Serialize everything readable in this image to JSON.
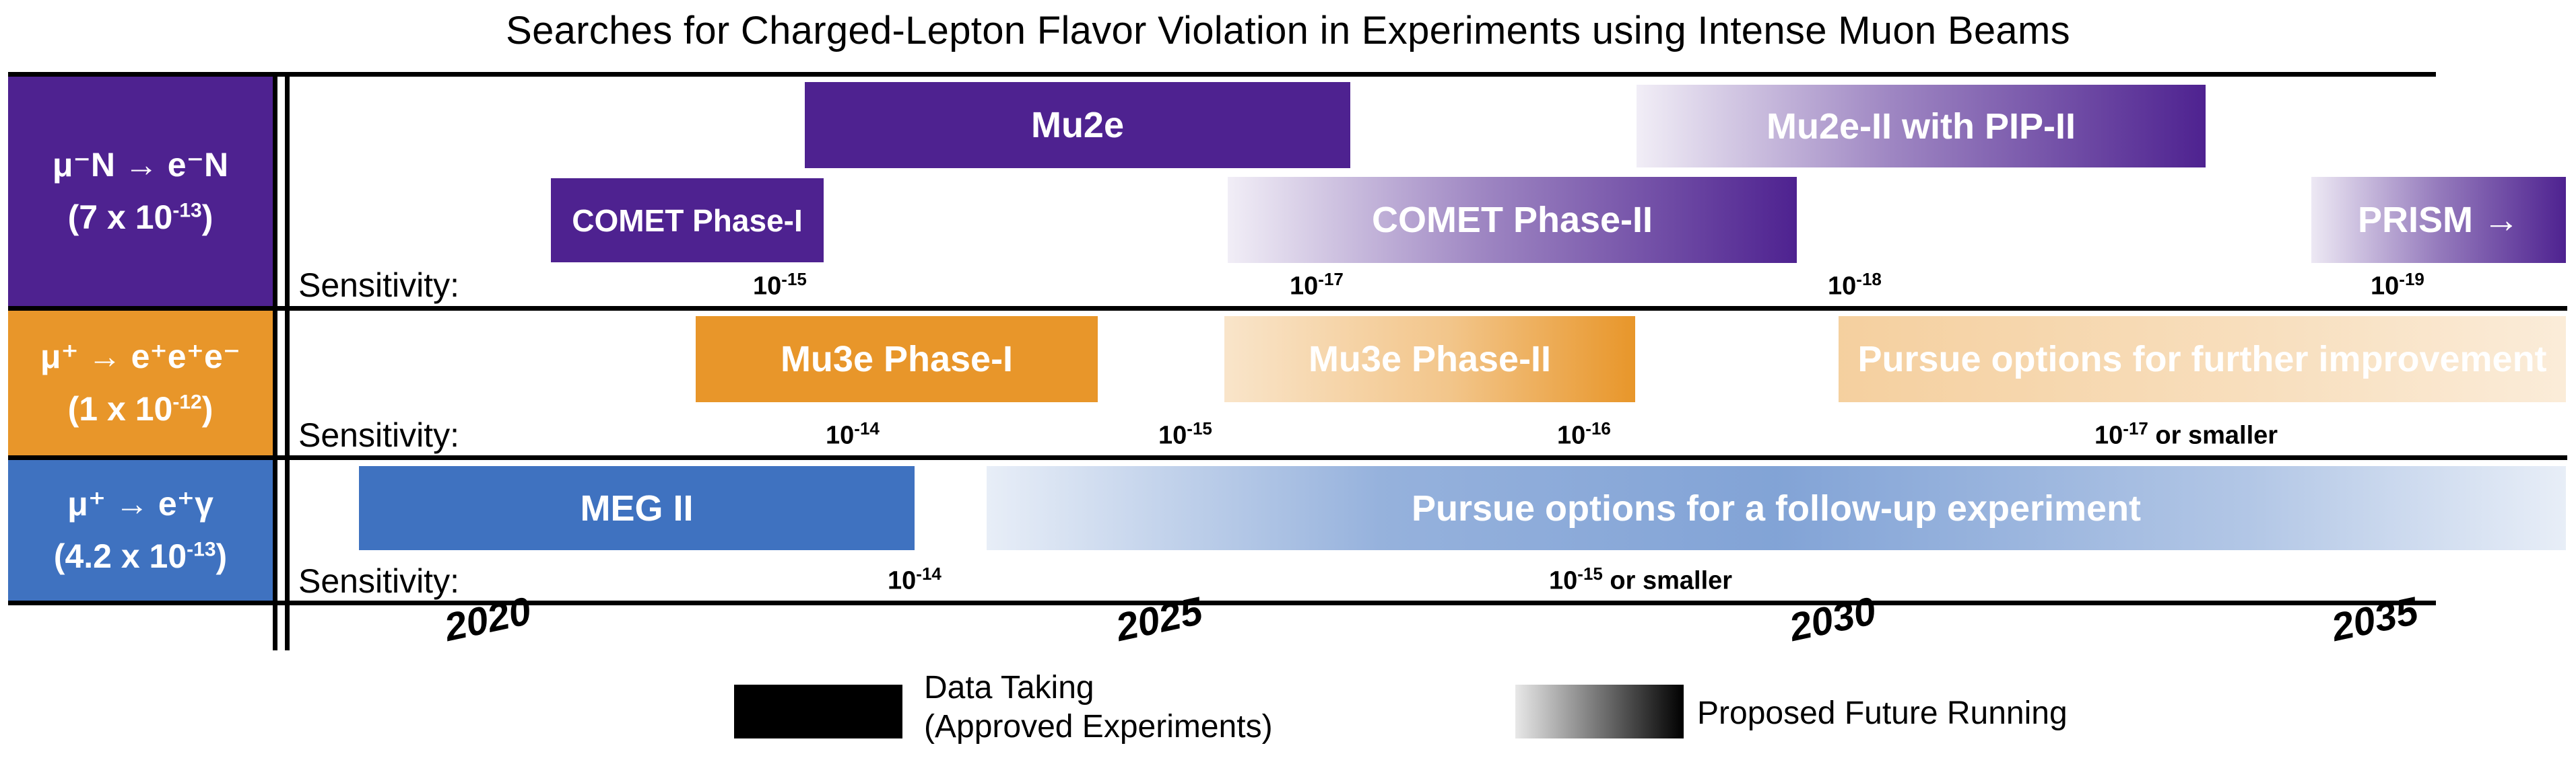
{
  "title": "Searches for Charged-Lepton Flavor Violation in Experiments using Intense Muon Beams",
  "colors": {
    "purple": "#4E2290",
    "orange": "#E8962A",
    "blue": "#3F72C0"
  },
  "rows": [
    {
      "process": "μ⁻N → e⁻N",
      "limit_prefix": "(7 x 10",
      "limit_exp": "-13",
      "limit_suffix": ")",
      "sensitivity_label": "Sensitivity:",
      "bars": [
        {
          "label": "Mu2e",
          "start": 2022.0,
          "end": 2026.1,
          "style": "data-taking"
        },
        {
          "label": "Mu2e-II with PIP-II",
          "start": 2028.2,
          "end": 2032.5,
          "style": "proposed"
        },
        {
          "label": "COMET Phase-I",
          "start": 2020.1,
          "end": 2021.8,
          "style": "data-taking"
        },
        {
          "label": "COMET Phase-II",
          "start": 2025.1,
          "end": 2029.4,
          "style": "proposed"
        },
        {
          "label": "PRISM →",
          "start": 2034.0,
          "end": 2035.9,
          "style": "proposed"
        }
      ],
      "sensitivities": [
        {
          "base": "10",
          "exp": "-15",
          "suffix": ""
        },
        {
          "base": "10",
          "exp": "-17",
          "suffix": ""
        },
        {
          "base": "10",
          "exp": "-18",
          "suffix": ""
        },
        {
          "base": "10",
          "exp": "-19",
          "suffix": ""
        }
      ]
    },
    {
      "process": "μ⁺ → e⁺e⁺e⁻",
      "limit_prefix": "(1 x 10",
      "limit_exp": "-12",
      "limit_suffix": ")",
      "sensitivity_label": "Sensitivity:",
      "bars": [
        {
          "label": "Mu3e Phase-I",
          "start": 2021.3,
          "end": 2024.3,
          "style": "data-taking"
        },
        {
          "label": "Mu3e Phase-II",
          "start": 2025.1,
          "end": 2028.2,
          "style": "proposed"
        },
        {
          "label": "Pursue options for further improvement",
          "start": 2029.6,
          "end": 2035.9,
          "style": "proposed-light"
        }
      ],
      "sensitivities": [
        {
          "base": "10",
          "exp": "-14",
          "suffix": ""
        },
        {
          "base": "10",
          "exp": "-15",
          "suffix": ""
        },
        {
          "base": "10",
          "exp": "-16",
          "suffix": ""
        },
        {
          "base": "10",
          "exp": "-17",
          "suffix": "or smaller"
        }
      ]
    },
    {
      "process": "μ⁺ → e⁺γ",
      "limit_prefix": "(4.2 x 10",
      "limit_exp": "-13",
      "limit_suffix": ")",
      "sensitivity_label": "Sensitivity:",
      "bars": [
        {
          "label": "MEG II",
          "start": 2019.3,
          "end": 2023.4,
          "style": "data-taking"
        },
        {
          "label": "Pursue options for a follow-up experiment",
          "start": 2023.9,
          "end": 2035.9,
          "style": "proposed-band"
        }
      ],
      "sensitivities": [
        {
          "base": "10",
          "exp": "-14",
          "suffix": ""
        },
        {
          "base": "10",
          "exp": "-15",
          "suffix": "or smaller"
        }
      ]
    }
  ],
  "years": [
    "2020",
    "2025",
    "2030",
    "2035"
  ],
  "legend": {
    "data_taking_line1": "Data Taking",
    "data_taking_line2": "(Approved Experiments)",
    "proposed": "Proposed Future Running"
  }
}
